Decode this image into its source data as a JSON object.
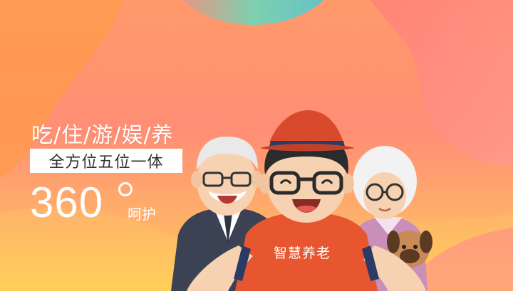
{
  "banner": {
    "headline": "吃/住/游/娱/养",
    "tagline": "全方位五位一体",
    "number": "360",
    "number_suffix": "呵护",
    "shirt_text": "智慧养老"
  },
  "icons": [
    "degree-sign-icon"
  ],
  "colors": {
    "background_top": "#ff9a6a",
    "background_bottom": "#ffc25a",
    "accent_shirt": "#e8562f",
    "hat": "#d84a2c",
    "text": "#ffffff",
    "tag_text": "#333333"
  }
}
